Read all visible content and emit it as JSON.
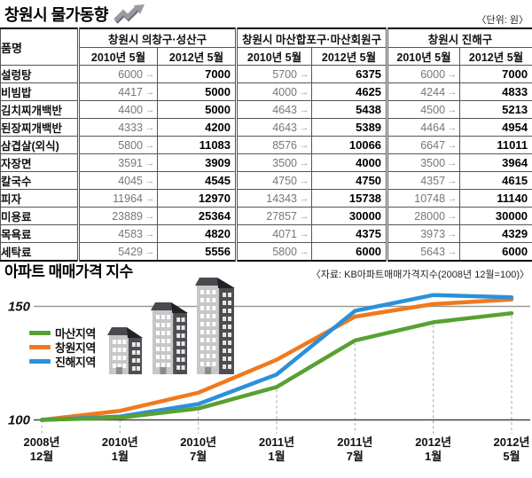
{
  "header": {
    "title": "창원시 물가동향",
    "icon": "up-right-trend-arrow-icon",
    "unit_label": "〈단위: 원〉"
  },
  "table": {
    "item_header": "품명",
    "groups": [
      {
        "label": "창원시 의창구·성산구"
      },
      {
        "label": "창원시 마산합포구·마산회원구"
      },
      {
        "label": "창원시 진해구"
      }
    ],
    "period_headers": [
      "2010년 5월",
      "2012년 5월"
    ],
    "arrow_glyph": "→",
    "rows": [
      {
        "item": "설렁탕",
        "values": [
          [
            6000,
            7000
          ],
          [
            5700,
            6375
          ],
          [
            6000,
            7000
          ]
        ]
      },
      {
        "item": "비빔밥",
        "values": [
          [
            4417,
            5000
          ],
          [
            4000,
            4625
          ],
          [
            4244,
            4833
          ]
        ]
      },
      {
        "item": "김치찌개백반",
        "values": [
          [
            4400,
            5000
          ],
          [
            4643,
            5438
          ],
          [
            4500,
            5213
          ]
        ]
      },
      {
        "item": "된장찌개백반",
        "values": [
          [
            4333,
            4200
          ],
          [
            4643,
            5389
          ],
          [
            4464,
            4954
          ]
        ]
      },
      {
        "item": "삼겹살(외식)",
        "values": [
          [
            5800,
            11083
          ],
          [
            8576,
            10066
          ],
          [
            6647,
            11011
          ]
        ]
      },
      {
        "item": "자장면",
        "values": [
          [
            3591,
            3909
          ],
          [
            3500,
            4000
          ],
          [
            3500,
            3964
          ]
        ]
      },
      {
        "item": "칼국수",
        "values": [
          [
            4045,
            4545
          ],
          [
            4750,
            4750
          ],
          [
            4357,
            4615
          ]
        ]
      },
      {
        "item": "피자",
        "values": [
          [
            11964,
            12970
          ],
          [
            14343,
            15738
          ],
          [
            10748,
            11140
          ]
        ]
      },
      {
        "item": "미용료",
        "values": [
          [
            23889,
            25364
          ],
          [
            27857,
            30000
          ],
          [
            28000,
            30000
          ]
        ]
      },
      {
        "item": "목욕료",
        "values": [
          [
            4583,
            4820
          ],
          [
            4071,
            4375
          ],
          [
            3973,
            4329
          ]
        ]
      },
      {
        "item": "세탁료",
        "values": [
          [
            5429,
            5556
          ],
          [
            5800,
            6000
          ],
          [
            5643,
            6000
          ]
        ]
      }
    ]
  },
  "chart": {
    "title": "아파트 매매가격 지수",
    "source": "〈자료: KB아파트매매가격지수(2008년 12월=100)〉",
    "icon": "apartment-buildings-icon",
    "colors": {
      "grid": "#999999",
      "baseline": "#444444",
      "dashed_tick": "#aaaaaa"
    }
  },
  "chart_data": {
    "type": "line",
    "title": "아파트 매매가격 지수",
    "x": [
      "2008년 12월",
      "2010년 1월",
      "2010년 7월",
      "2011년 1월",
      "2011년 7월",
      "2012년 1월",
      "2012년 5월"
    ],
    "series": [
      {
        "name": "마산지역",
        "color": "#59a033",
        "values": [
          100,
          101,
          105,
          114.5,
          135,
          143,
          147
        ]
      },
      {
        "name": "창원지역",
        "color": "#f0791e",
        "values": [
          100,
          104,
          112,
          126.5,
          145.5,
          151,
          153
        ]
      },
      {
        "name": "진해지역",
        "color": "#2b90d9",
        "values": [
          100,
          101.5,
          107,
          120,
          148,
          155,
          154
        ]
      }
    ],
    "yticks": [
      150,
      100
    ],
    "ylim": [
      100,
      158
    ],
    "grid": "horizontal-at-150-and-100",
    "legend_position": "upper-left",
    "note": "2008년 12월=100"
  }
}
